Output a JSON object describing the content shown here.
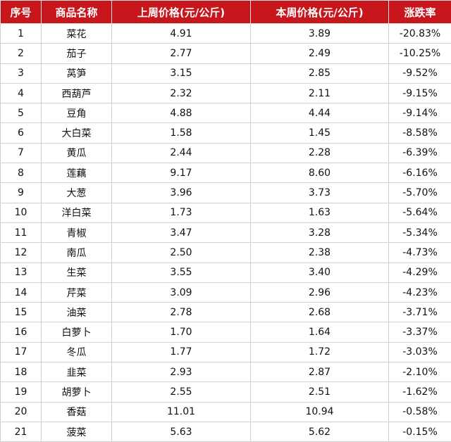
{
  "colors": {
    "header_bg": "#c8161d",
    "header_text": "#ffffff",
    "grid": "#cfcfcf"
  },
  "headers": [
    "序号",
    "商品名称",
    "上周价格(元/公斤)",
    "本周价格(元/公斤)",
    "涨跌率"
  ],
  "rows": [
    [
      "1",
      "菜花",
      "4.91",
      "3.89",
      "-20.83%"
    ],
    [
      "2",
      "茄子",
      "2.77",
      "2.49",
      "-10.25%"
    ],
    [
      "3",
      "莴笋",
      "3.15",
      "2.85",
      "-9.52%"
    ],
    [
      "4",
      "西葫芦",
      "2.32",
      "2.11",
      "-9.15%"
    ],
    [
      "5",
      "豆角",
      "4.88",
      "4.44",
      "-9.14%"
    ],
    [
      "6",
      "大白菜",
      "1.58",
      "1.45",
      "-8.58%"
    ],
    [
      "7",
      "黄瓜",
      "2.44",
      "2.28",
      "-6.39%"
    ],
    [
      "8",
      "莲藕",
      "9.17",
      "8.60",
      "-6.16%"
    ],
    [
      "9",
      "大葱",
      "3.96",
      "3.73",
      "-5.70%"
    ],
    [
      "10",
      "洋白菜",
      "1.73",
      "1.63",
      "-5.64%"
    ],
    [
      "11",
      "青椒",
      "3.47",
      "3.28",
      "-5.34%"
    ],
    [
      "12",
      "南瓜",
      "2.50",
      "2.38",
      "-4.73%"
    ],
    [
      "13",
      "生菜",
      "3.55",
      "3.40",
      "-4.29%"
    ],
    [
      "14",
      "芹菜",
      "3.09",
      "2.96",
      "-4.23%"
    ],
    [
      "15",
      "油菜",
      "2.78",
      "2.68",
      "-3.71%"
    ],
    [
      "16",
      "白萝卜",
      "1.70",
      "1.64",
      "-3.37%"
    ],
    [
      "17",
      "冬瓜",
      "1.77",
      "1.72",
      "-3.03%"
    ],
    [
      "18",
      "韭菜",
      "2.93",
      "2.87",
      "-2.10%"
    ],
    [
      "19",
      "胡萝卜",
      "2.55",
      "2.51",
      "-1.62%"
    ],
    [
      "20",
      "香菇",
      "11.01",
      "10.94",
      "-0.58%"
    ],
    [
      "21",
      "菠菜",
      "5.63",
      "5.62",
      "-0.15%"
    ]
  ]
}
